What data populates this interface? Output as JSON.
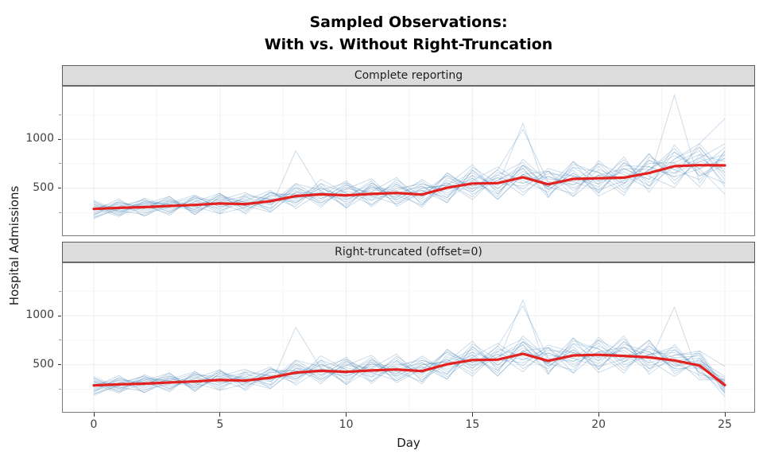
{
  "title": {
    "line1": "Sampled Observations:",
    "line2": "With vs. Without Right-Truncation"
  },
  "axes": {
    "x_label": "Day",
    "y_label": "Hospital Admissions",
    "x_tick_labels": [
      "0",
      "5",
      "10",
      "15",
      "20",
      "25"
    ],
    "y_tick_labels": [
      "500",
      "1000"
    ]
  },
  "colors": {
    "mean_line": "#e32220",
    "sample_line": "rgba(70,130,180,0.30)",
    "strip_background": "#dcdcdc",
    "strip_border": "#5a5a5a",
    "panel_border": "#7a7a7a",
    "grid_major": "#ececec",
    "grid_minor": "#f6f6f6",
    "tick_text": "#404040"
  },
  "chart_data": {
    "type": "line",
    "title": "Sampled Observations: With vs. Without Right-Truncation",
    "xlabel": "Day",
    "ylabel": "Hospital Admissions",
    "x": [
      0,
      1,
      2,
      3,
      4,
      5,
      6,
      7,
      8,
      9,
      10,
      11,
      12,
      13,
      14,
      15,
      16,
      17,
      18,
      19,
      20,
      21,
      22,
      23,
      24,
      25
    ],
    "x_ticks": [
      0,
      5,
      10,
      15,
      20,
      25
    ],
    "x_minor_ticks": [
      2.5,
      7.5,
      12.5,
      17.5,
      22.5
    ],
    "y_ticks_major": [
      500,
      1000
    ],
    "y_ticks_minor": [
      250,
      750,
      1250
    ],
    "xlim": [
      0,
      25
    ],
    "ylim": [
      20,
      1535
    ],
    "grid": true,
    "legend": "none",
    "panels": [
      {
        "strip_label": "Complete reporting",
        "mean": [
          290,
          300,
          308,
          320,
          330,
          345,
          338,
          368,
          420,
          438,
          428,
          442,
          452,
          436,
          505,
          548,
          552,
          612,
          540,
          595,
          602,
          608,
          655,
          725,
          735,
          733
        ],
        "reporting_factors": [
          1,
          1,
          1,
          1,
          1,
          1,
          1,
          1,
          1,
          1,
          1,
          1,
          1,
          1,
          1,
          1,
          1,
          1,
          1,
          1,
          1,
          1,
          1,
          1,
          1,
          1
        ]
      },
      {
        "strip_label": "Right-truncated (offset=0)",
        "mean": [
          290,
          300,
          308,
          320,
          330,
          345,
          338,
          368,
          420,
          438,
          428,
          442,
          452,
          436,
          505,
          548,
          552,
          612,
          540,
          595,
          602,
          590,
          576,
          544,
          492,
          293
        ],
        "reporting_factors": [
          1,
          1,
          1,
          1,
          1,
          1,
          1,
          1,
          1,
          1,
          1,
          1,
          1,
          1,
          1,
          1,
          1,
          1,
          1,
          1,
          1,
          0.97,
          0.88,
          0.75,
          0.67,
          0.4
        ]
      }
    ],
    "sample_multipliers": [
      [
        1.25,
        0.85,
        1.1,
        0.7,
        1.3,
        0.95,
        1.15,
        0.8,
        2.1,
        1.05,
        0.75,
        1.2,
        0.9,
        1.35,
        0.85,
        1.1,
        0.7,
        1.05,
        1.25,
        0.8,
        1.15,
        0.95,
        1.3,
        0.75,
        1.1,
        0.9
      ],
      [
        0.8,
        1.2,
        0.95,
        1.25,
        0.75,
        1.1,
        1.35,
        0.9,
        1.15,
        0.7,
        1.25,
        0.85,
        1.05,
        1.3,
        0.8,
        1.15,
        0.95,
        1.9,
        0.75,
        1.2,
        0.9,
        1.35,
        0.7,
        1.1,
        1.25,
        0.85
      ],
      [
        1.1,
        0.75,
        1.3,
        0.95,
        1.15,
        0.7,
        0.9,
        1.25,
        0.8,
        1.35,
        1.05,
        0.75,
        1.2,
        0.9,
        1.3,
        0.85,
        1.1,
        0.7,
        1.25,
        0.95,
        0.8,
        1.15,
        0.9,
        2.0,
        0.75,
        1.2
      ],
      [
        0.95,
        1.3,
        0.7,
        1.15,
        0.85,
        1.25,
        1.05,
        0.75,
        1.3,
        0.9,
        1.15,
        1.35,
        0.8,
        1.1,
        0.7,
        1.25,
        0.85,
        1.05,
        0.95,
        1.3,
        0.75,
        1.2,
        1.1,
        0.85,
        1.3,
        1.65
      ],
      [
        0.7,
        1.05,
        1.25,
        0.85,
        1.1,
        1.3,
        0.8,
        1.15,
        0.95,
        1.2,
        0.7,
        1.05,
        1.35,
        0.75,
        1.15,
        0.9,
        1.25,
        1.8,
        1.05,
        0.7,
        1.3,
        0.9,
        1.2,
        0.95,
        0.8,
        1.15
      ],
      [
        1.3,
        0.9,
        0.75,
        1.2,
        0.95,
        1.05,
        1.25,
        0.7,
        1.1,
        0.85,
        1.3,
        0.95,
        0.75,
        1.15,
        1.05,
        1.35,
        0.8,
        1.2,
        0.9,
        1.1,
        0.75,
        1.25,
        0.85,
        1.05,
        1.2,
        0.7
      ],
      [
        0.85,
        1.15,
        1.05,
        0.75,
        1.25,
        0.9,
        1.1,
        1.3,
        0.7,
        1.05,
        0.95,
        1.25,
        0.85,
        1.2,
        0.75,
        1.05,
        1.3,
        0.9,
        1.15,
        0.85,
        1.05,
        0.7,
        1.25,
        0.95,
        1.1,
        1.3
      ],
      [
        1.05,
        0.7,
        1.2,
        1.05,
        0.8,
        1.15,
        0.95,
        1.25,
        0.85,
        1.1,
        1.3,
        0.7,
        1.15,
        0.95,
        1.25,
        0.8,
        1.05,
        1.15,
        0.75,
        1.3,
        0.95,
        1.1,
        0.8,
        1.2,
        0.9,
        0.75
      ],
      [
        0.75,
        1.25,
        0.9,
        1.1,
        1.3,
        0.8,
        1.05,
        0.95,
        1.2,
        0.75,
        1.15,
        1.05,
        0.9,
        1.25,
        0.95,
        1.1,
        0.75,
        1.3,
        1.05,
        0.9,
        1.2,
        0.8,
        1.05,
        1.15,
        0.95,
        1.25
      ],
      [
        1.15,
        0.95,
        1.1,
        1.3,
        0.7,
        1.2,
        0.85,
        1.05,
        0.95,
        1.25,
        0.8,
        1.15,
        1.05,
        0.7,
        1.2,
        0.95,
        1.15,
        0.8,
        1.3,
        1.05,
        0.85,
        1.25,
        0.95,
        0.7,
        1.15,
        1.05
      ],
      [
        0.9,
        1.1,
        0.8,
        0.95,
        1.2,
        0.75,
        1.3,
        1.05,
        0.9,
        1.15,
        0.95,
        1.3,
        0.7,
        1.05,
        1.1,
        0.75,
        1.2,
        0.95,
        0.85,
        1.25,
        1.1,
        0.9,
        1.3,
        0.8,
        1.05,
        0.95
      ],
      [
        1.2,
        0.8,
        1.15,
        1.05,
        0.9,
        1.3,
        0.7,
        1.2,
        1.05,
        0.8,
        1.2,
        0.9,
        1.25,
        0.85,
        1.05,
        1.2,
        0.9,
        1.1,
        0.95,
        0.75,
        1.25,
        1.05,
        0.75,
        1.3,
        0.85,
        1.1
      ],
      [
        0.65,
        1.0,
        1.25,
        0.9,
        1.05,
        0.85,
        1.2,
        0.95,
        1.3,
        1.1,
        0.7,
        1.25,
        0.95,
        1.1,
        0.8,
        1.3,
        1.0,
        0.85,
        1.2,
        1.05,
        0.9,
        1.15,
        1.05,
        0.9,
        1.25,
        0.8
      ],
      [
        1.1,
        0.9,
        1.05,
        1.2,
        0.8,
        1.05,
        0.95,
        1.1,
        0.75,
        1.25,
        1.05,
        0.85,
        1.3,
        0.95,
        1.1,
        0.7,
        1.15,
        1.25,
        0.9,
        1.1,
        0.8,
        0.95,
        1.15,
        1.05,
        0.7,
        1.2
      ],
      [
        0.95,
        1.15,
        0.7,
        1.05,
        1.25,
        0.9,
        1.1,
        0.8,
        1.2,
        0.95,
        1.35,
        0.75,
        1.1,
        1.25,
        0.9,
        1.05,
        0.8,
        1.2,
        1.1,
        0.95,
        1.25,
        0.85,
        1.05,
        1.2,
        0.95,
        0.6
      ],
      [
        1.25,
        0.85,
        1.2,
        0.8,
        1.1,
        1.0,
        0.75,
        1.25,
        0.95,
        1.05,
        0.85,
        1.2,
        0.75,
        1.05,
        1.25,
        0.95,
        1.1,
        0.9,
        1.25,
        0.7,
        1.05,
        1.15,
        0.9,
        1.1,
        1.3,
        0.9
      ],
      [
        0.8,
        1.05,
        0.95,
        1.3,
        0.7,
        1.2,
        1.05,
        0.9,
        1.25,
        0.8,
        1.1,
        0.95,
        1.2,
        0.8,
        1.0,
        1.15,
        0.7,
        1.05,
        0.95,
        1.2,
        1.1,
        0.75,
        1.2,
        0.9,
        1.05,
        1.15
      ],
      [
        1.0,
        1.2,
        0.85,
        1.1,
        0.95,
        0.7,
        1.25,
        1.05,
        0.85,
        1.15,
        0.9,
        1.1,
        1.0,
        1.2,
        0.7,
        1.25,
        0.9,
        1.15,
        0.8,
        1.05,
        0.95,
        1.3,
        0.8,
        1.0,
        1.15,
        0.75
      ],
      [
        0.7,
        0.95,
        1.15,
        0.8,
        1.2,
        1.1,
        0.9,
        1.15,
        1.05,
        0.9,
        1.25,
        1.0,
        0.85,
        1.15,
        1.05,
        0.85,
        1.25,
        0.75,
        1.15,
        0.9,
        1.05,
        1.0,
        1.1,
        0.85,
        0.95,
        1.1
      ],
      [
        1.15,
        0.75,
        1.0,
        1.15,
        0.85,
        1.25,
        0.95,
        0.7,
        1.1,
        1.0,
        0.9,
        1.15,
        0.95,
        0.75,
        1.3,
        0.9,
        1.05,
        1.2,
        0.95,
        1.15,
        0.7,
        0.9,
        1.05,
        1.25,
        0.85,
        1.0
      ]
    ]
  }
}
